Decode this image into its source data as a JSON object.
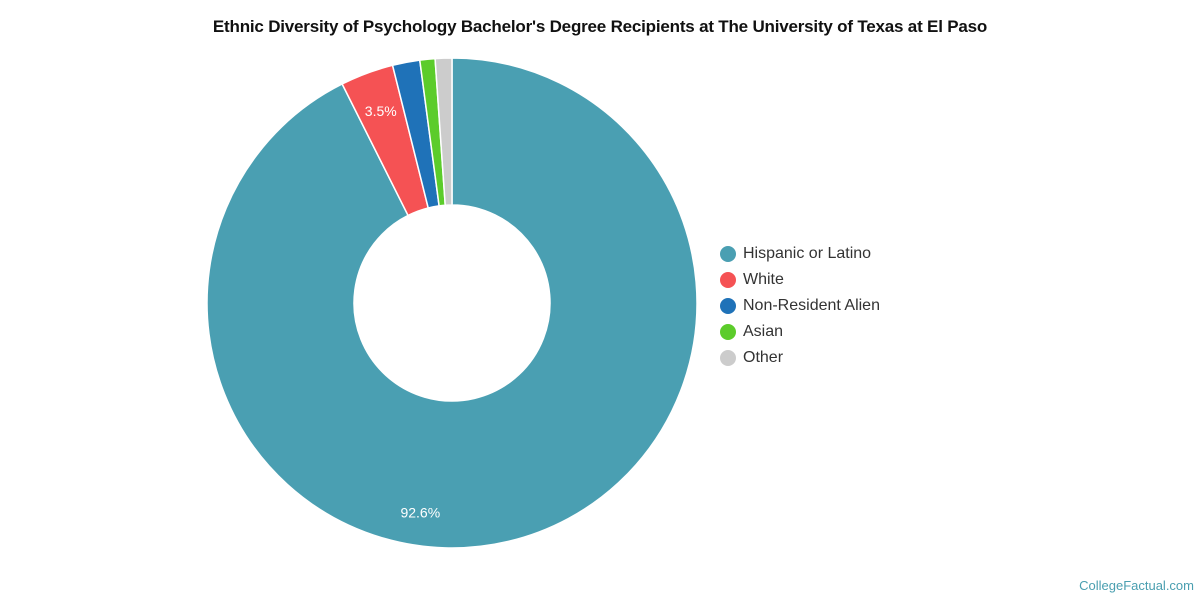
{
  "title": "Ethnic Diversity of Psychology Bachelor's Degree Recipients at The University of Texas at El Paso",
  "credit": "CollegeFactual.com",
  "chart_data": {
    "type": "pie",
    "subtype": "donut",
    "title": "Ethnic Diversity of Psychology Bachelor's Degree Recipients at The University of Texas at El Paso",
    "categories": [
      "Hispanic or Latino",
      "White",
      "Non-Resident Alien",
      "Asian",
      "Other"
    ],
    "values": [
      92.6,
      3.5,
      1.8,
      1.0,
      1.1
    ],
    "colors": [
      "#4a9fb2",
      "#f55254",
      "#1f72b8",
      "#5ccc2b",
      "#cccccc"
    ],
    "data_labels": [
      "92.6%",
      "3.5%",
      "",
      "",
      ""
    ],
    "legend_position": "right"
  },
  "legend": [
    {
      "label": "Hispanic or Latino",
      "color": "#4a9fb2"
    },
    {
      "label": "White",
      "color": "#f55254"
    },
    {
      "label": "Non-Resident Alien",
      "color": "#1f72b8"
    },
    {
      "label": "Asian",
      "color": "#5ccc2b"
    },
    {
      "label": "Other",
      "color": "#cccccc"
    }
  ]
}
